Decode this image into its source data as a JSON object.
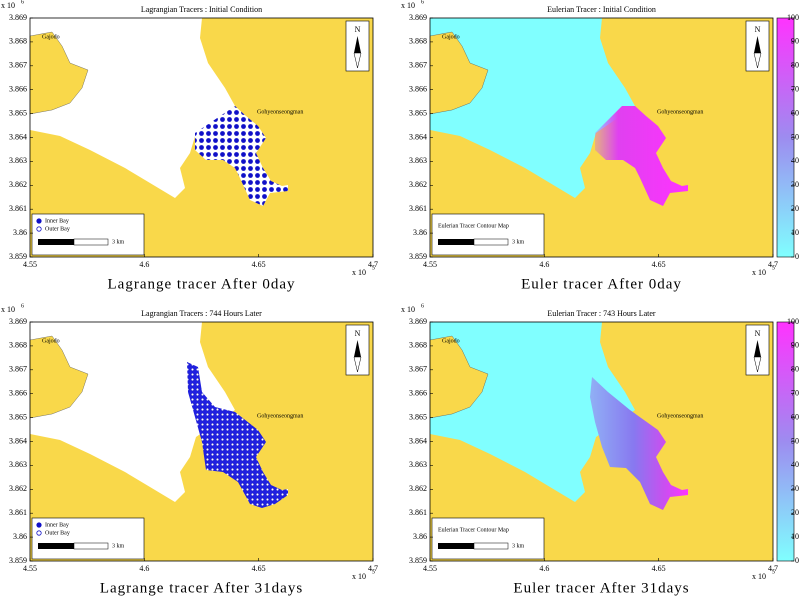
{
  "chart_data": [
    {
      "type": "map",
      "title": "Lagrangian Tracers : Initial Condition",
      "caption": "Lagrange tracer After 0day",
      "xlim": [
        4.55,
        4.7
      ],
      "xticks": [
        4.55,
        4.6,
        4.65,
        4.7
      ],
      "ylim": [
        3.859,
        3.869
      ],
      "yticks": [
        3.859,
        3.86,
        3.861,
        3.862,
        3.863,
        3.864,
        3.865,
        3.866,
        3.867,
        3.868,
        3.869
      ],
      "x_scale": "x 10",
      "x_scale_exp": "5",
      "y_scale": "x 10",
      "y_scale_exp": "6",
      "places": [
        "Gajodo",
        "Gohyeonseongman"
      ],
      "north": "N",
      "legend": [
        "Inner Bay",
        "Outer Bay"
      ],
      "scale_bar": "3   km"
    },
    {
      "type": "map",
      "title": "Eulerian Tracer : Initial Condition",
      "caption": "Euler tracer After 0day",
      "xlim": [
        4.55,
        4.7
      ],
      "xticks": [
        4.55,
        4.6,
        4.65,
        4.7
      ],
      "ylim": [
        3.859,
        3.869
      ],
      "yticks": [
        3.859,
        3.86,
        3.861,
        3.862,
        3.863,
        3.864,
        3.865,
        3.866,
        3.867,
        3.868,
        3.869
      ],
      "x_scale": "x 10",
      "x_scale_exp": "5",
      "y_scale": "x 10",
      "y_scale_exp": "6",
      "places": [
        "Gajodo",
        "Gohyeonseongman"
      ],
      "north": "N",
      "legend_title": "Eulerian Tracer Contour Map",
      "scale_bar": "3   km",
      "clim": [
        0,
        100
      ],
      "cticks": [
        0,
        10,
        20,
        30,
        40,
        50,
        60,
        70,
        80,
        90,
        100
      ]
    },
    {
      "type": "map",
      "title": "Lagrangian Tracers : 744 Hours Later",
      "caption": "Lagrange tracer After 31days",
      "xlim": [
        4.55,
        4.7
      ],
      "xticks": [
        4.55,
        4.6,
        4.65,
        4.7
      ],
      "ylim": [
        3.859,
        3.869
      ],
      "yticks": [
        3.859,
        3.86,
        3.861,
        3.862,
        3.863,
        3.864,
        3.865,
        3.866,
        3.867,
        3.868,
        3.869
      ],
      "x_scale": "x 10",
      "x_scale_exp": "5",
      "y_scale": "x 10",
      "y_scale_exp": "6",
      "places": [
        "Gajodo",
        "Gohyeonseongman"
      ],
      "north": "N",
      "legend": [
        "Inner Bay",
        "Outer Bay"
      ],
      "scale_bar": "3   km"
    },
    {
      "type": "map",
      "title": "Eulerian Tracer : 743 Hours Later",
      "caption": "Euler tracer After 31days",
      "xlim": [
        4.55,
        4.7
      ],
      "xticks": [
        4.55,
        4.6,
        4.65,
        4.7
      ],
      "ylim": [
        3.859,
        3.869
      ],
      "yticks": [
        3.859,
        3.86,
        3.861,
        3.862,
        3.863,
        3.864,
        3.865,
        3.866,
        3.867,
        3.868,
        3.869
      ],
      "x_scale": "x 10",
      "x_scale_exp": "5",
      "y_scale": "x 10",
      "y_scale_exp": "6",
      "places": [
        "Gajodo",
        "Gohyeonseongman"
      ],
      "north": "N",
      "legend_title": "Eulerian Tracer Contour Map",
      "scale_bar": "3   km",
      "clim": [
        0,
        100
      ],
      "cticks": [
        0,
        10,
        20,
        30,
        40,
        50,
        60,
        70,
        80,
        90,
        100
      ]
    }
  ]
}
